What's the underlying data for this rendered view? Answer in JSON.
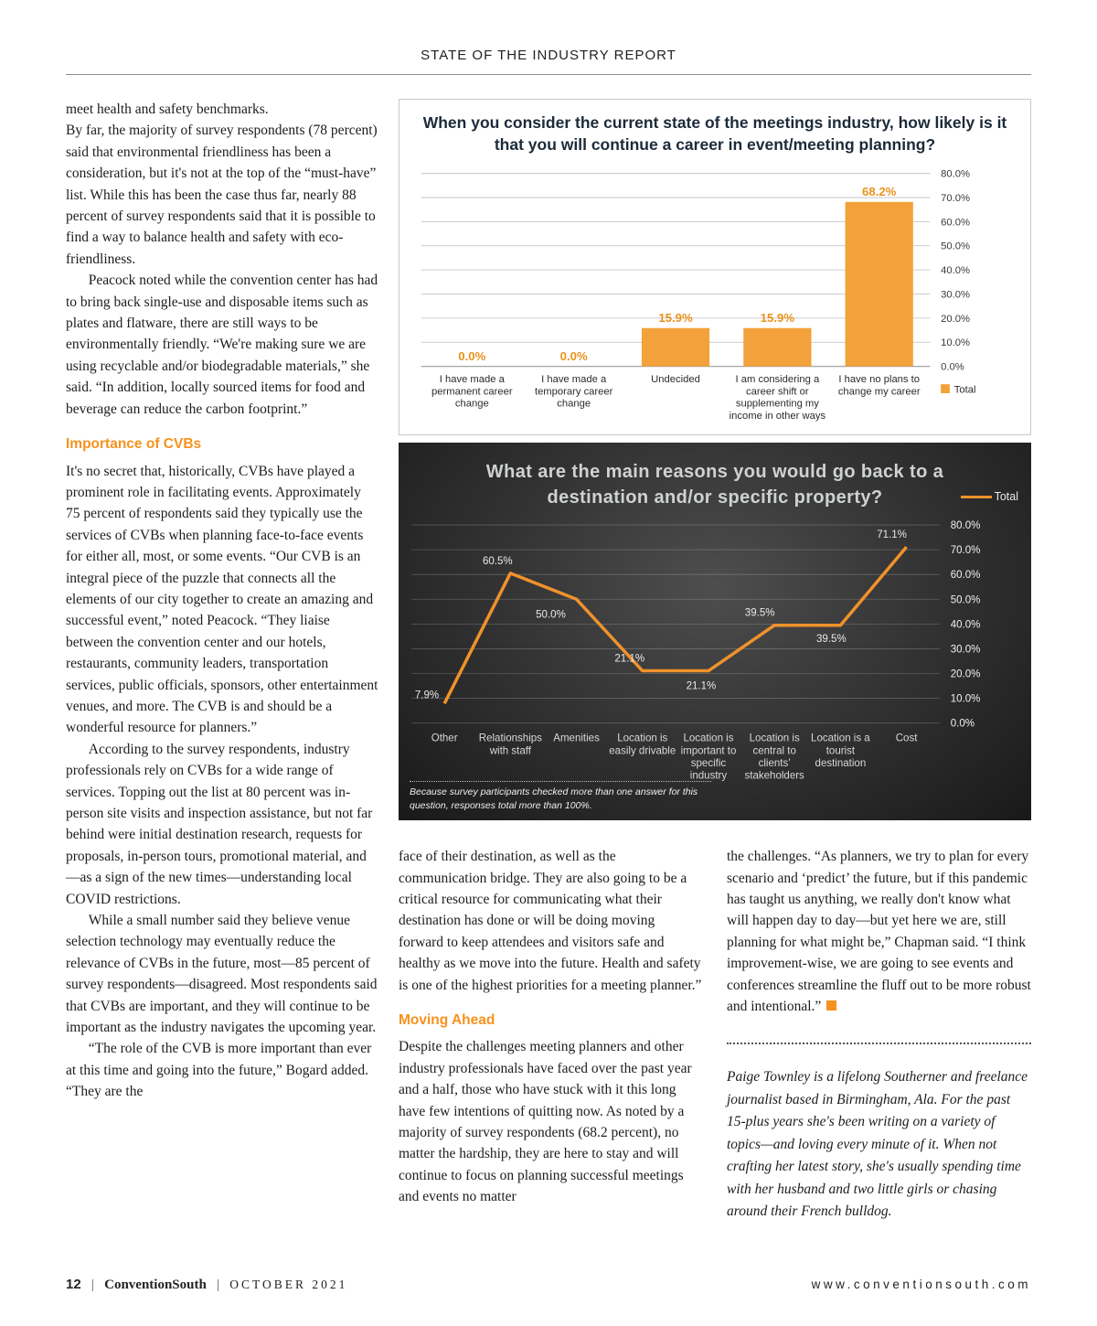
{
  "header": {
    "title": "STATE OF THE INDUSTRY REPORT"
  },
  "accent_color": "#F6921E",
  "columns": {
    "left": {
      "para1a": "meet health and safety benchmarks.",
      "para1b": "By far, the majority of survey respondents (78 percent) said that environmental friendliness has been a consideration, but it's not at the top of the “must-have” list. While this has been the case thus far, nearly 88 percent of survey respondents said that it is possible to find a way to balance health and safety with eco-friendliness.",
      "para2": "Peacock noted while the convention center has had to bring back single-use and disposable items such as plates and flatware, there are still ways to be environmentally friendly. “We're making sure we are using recyclable and/or biodegradable materials,” she said. “In addition, locally sourced items for food and beverage can reduce the carbon footprint.”",
      "heading_cvbs": "Importance of CVBs",
      "para3": "It's no secret that, historically, CVBs have played a prominent role in facilitating events. Approximately 75 percent of respondents said they typically use the services of CVBs when planning face-to-face events for either all, most, or some events. “Our CVB is an integral piece of the puzzle that connects all the elements of our city together to create an amazing and successful event,” noted Peacock. “They liaise between the convention center and our hotels, restaurants, community leaders, transportation services, public officials, sponsors, other entertainment venues, and more. The CVB is and should be a wonderful resource for planners.”",
      "para4": "According to the survey respondents, industry professionals rely on CVBs for a wide range of services. Topping out the list at 80 percent was in-person site visits and inspection assistance, but not far behind were initial destination research, requests for proposals, in-person tours, promotional material, and—as a sign of the new times—understanding local COVID restrictions.",
      "para5": "While a small number said they believe venue selection technology may eventually reduce the relevance of CVBs in the future, most—85 percent of survey respondents—disagreed. Most respondents said that CVBs are important, and they will continue to be important as the industry navigates the upcoming year.",
      "para6": "“The role of the CVB is more important than ever at this time and going into the future,” Bogard added. “They are the"
    },
    "middle": {
      "para1": "face of their destination, as well as the communication bridge. They are also going to be a critical resource for communicating what their destination has done or will be doing moving forward to keep attendees and visitors safe and healthy as we move into the future. Health and safety is one of the highest priorities for a meeting planner.”",
      "heading_moving": "Moving Ahead",
      "para2": "Despite the challenges meeting planners and other industry professionals have faced over the past year and a half, those who have stuck with it this long have few intentions of quitting now. As noted by a majority of survey respondents (68.2 percent), no matter the hardship, they are here to stay and will continue to focus on planning successful meetings and events no matter"
    },
    "right": {
      "para1": "the challenges. “As planners, we try to plan for every scenario and ‘predict’ the future, but if this pandemic has taught us anything, we really don't know what will happen day to day—but yet here we are, still planning for what might be,” Chapman said. “I think improvement-wise, we are going to see events and conferences streamline the fluff out to be more robust and intentional.”",
      "bio": "Paige Townley is a lifelong Southerner and freelance journalist based in Birmingham, Ala. For the past 15-plus years she's been writing on a variety of topics—and loving every minute of it. When not crafting her latest story, she's usually spending time with her husband and two little girls or chasing around their French bulldog."
    }
  },
  "chart_data": [
    {
      "type": "bar",
      "title": "When you consider the current state of the meetings industry, how likely is it that you will continue a career in event/meeting planning?",
      "categories": [
        "I have made a permanent career change",
        "I have made a temporary career change",
        "Undecided",
        "I am considering a career shift or supplementing my income in other ways",
        "I have no plans to change my career"
      ],
      "values": [
        0.0,
        0.0,
        15.9,
        15.9,
        68.2
      ],
      "legend": "Total",
      "ylim": [
        0,
        80
      ],
      "y_tick_step": 10,
      "grid": true,
      "legend_position": "right",
      "bar_color": "#F2A13B",
      "value_label_color": "#E8921C"
    },
    {
      "type": "line",
      "title": "What are the main reasons you would go back to a destination and/or specific property?",
      "categories": [
        "Other",
        "Relationships with staff",
        "Amenities",
        "Location is easily drivable",
        "Location is important to specific industry",
        "Location is central to clients’ stakeholders",
        "Location is a tourist destination",
        "Cost"
      ],
      "values": [
        7.9,
        60.5,
        50.0,
        21.1,
        21.1,
        39.5,
        39.5,
        71.1
      ],
      "legend": "Total",
      "ylim": [
        0,
        80
      ],
      "y_tick_step": 10,
      "grid": true,
      "legend_position": "top-right",
      "line_color": "#F0922B",
      "background": "dark",
      "footnote": "Because survey participants checked more than one answer for this question, responses total more than 100%."
    }
  ],
  "footer": {
    "page_number": "12",
    "magazine": "ConventionSouth",
    "issue": "OCTOBER 2021",
    "separator": "|",
    "website": "www.conventionsouth.com"
  }
}
